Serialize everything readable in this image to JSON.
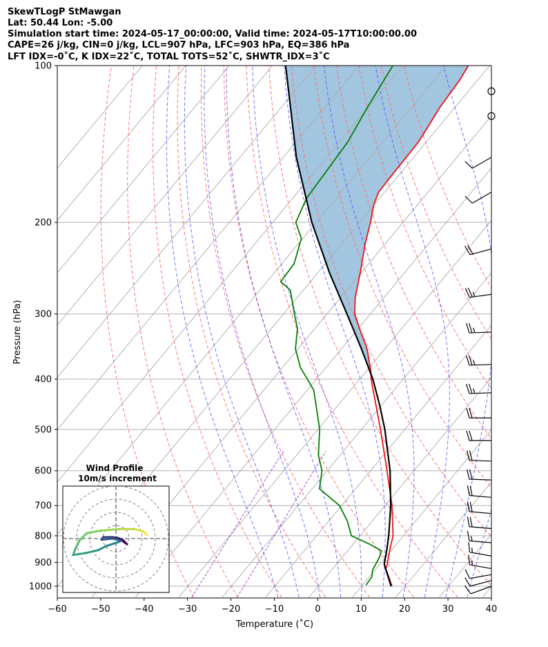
{
  "title": {
    "line1": "SkewTLogP StMawgan",
    "line2": "Lat: 50.44   Lon: -5.00",
    "line3": "Simulation start time: 2024-05-17_00:00:00, Valid time: 2024-05-17T10:00:00.00",
    "line4": "CAPE=26 j/kg, CIN=0 j/kg, LCL=907 hPa, LFC=903 hPa, EQ=386 hPa",
    "line5": "LFT IDX=-0˚C, K IDX=22˚C, TOTAL TOTS=52˚C, SHWTR_IDX=3˚C"
  },
  "colors": {
    "temperature": "#ee1111",
    "dewpoint": "#008000",
    "parcel": "#000000",
    "cape_fill": "#a3c6e0",
    "isotherm": "#aaaaaa",
    "dry_adiabat": "#ff6666",
    "moist_adiabat": "#4444ff",
    "mixing_ratio": "#9933cc"
  },
  "chart_data": {
    "type": "skewt",
    "xlabel": "Temperature (˚C)",
    "ylabel": "Pressure (hPa)",
    "xlim": [
      -60,
      40
    ],
    "ylim": [
      1050,
      100
    ],
    "xticks": [
      -60,
      -50,
      -40,
      -30,
      -20,
      -10,
      0,
      10,
      20,
      30,
      40
    ],
    "xtick_labels": [
      "−60",
      "−50",
      "−40",
      "−30",
      "−20",
      "−10",
      "0",
      "10",
      "20",
      "30",
      "40"
    ],
    "yticks": [
      1000,
      900,
      800,
      700,
      600,
      500,
      400,
      300,
      200,
      100
    ],
    "ytick_labels": [
      "1000",
      "900",
      "800",
      "700",
      "600",
      "500",
      "400",
      "300",
      "200",
      "100"
    ],
    "grid": true,
    "temperature_profile": [
      {
        "p": 1000,
        "t": 17.0
      },
      {
        "p": 960,
        "t": 14.5
      },
      {
        "p": 925,
        "t": 12.2
      },
      {
        "p": 907,
        "t": 11.7
      },
      {
        "p": 850,
        "t": 9.5
      },
      {
        "p": 800,
        "t": 7.6
      },
      {
        "p": 700,
        "t": 1.6
      },
      {
        "p": 600,
        "t": -6.2
      },
      {
        "p": 500,
        "t": -15.6
      },
      {
        "p": 400,
        "t": -27.4
      },
      {
        "p": 386,
        "t": -29.0
      },
      {
        "p": 350,
        "t": -34.1
      },
      {
        "p": 320,
        "t": -39.7
      },
      {
        "p": 300,
        "t": -43.6
      },
      {
        "p": 280,
        "t": -46.5
      },
      {
        "p": 250,
        "t": -50.2
      },
      {
        "p": 220,
        "t": -54.6
      },
      {
        "p": 200,
        "t": -57.5
      },
      {
        "p": 185,
        "t": -60.1
      },
      {
        "p": 175,
        "t": -61.4
      },
      {
        "p": 160,
        "t": -61.6
      },
      {
        "p": 140,
        "t": -61.8
      },
      {
        "p": 120,
        "t": -63.5
      },
      {
        "p": 107,
        "t": -64.1
      },
      {
        "p": 100,
        "t": -64.9
      }
    ],
    "dewpoint_profile": [
      {
        "p": 995,
        "t": 10.8
      },
      {
        "p": 960,
        "t": 10.6
      },
      {
        "p": 930,
        "t": 9.4
      },
      {
        "p": 910,
        "t": 9.1
      },
      {
        "p": 880,
        "t": 8.6
      },
      {
        "p": 855,
        "t": 7.8
      },
      {
        "p": 830,
        "t": 3.8
      },
      {
        "p": 800,
        "t": -2.0
      },
      {
        "p": 750,
        "t": -5.7
      },
      {
        "p": 700,
        "t": -10.5
      },
      {
        "p": 650,
        "t": -18.3
      },
      {
        "p": 600,
        "t": -21.2
      },
      {
        "p": 560,
        "t": -25.0
      },
      {
        "p": 500,
        "t": -29.6
      },
      {
        "p": 420,
        "t": -38.5
      },
      {
        "p": 380,
        "t": -45.9
      },
      {
        "p": 350,
        "t": -50.6
      },
      {
        "p": 320,
        "t": -54.0
      },
      {
        "p": 300,
        "t": -57.5
      },
      {
        "p": 270,
        "t": -63.0
      },
      {
        "p": 260,
        "t": -66.8
      },
      {
        "p": 240,
        "t": -67.2
      },
      {
        "p": 215,
        "t": -70.3
      },
      {
        "p": 200,
        "t": -74.7
      },
      {
        "p": 180,
        "t": -76.8
      },
      {
        "p": 160,
        "t": -77.4
      },
      {
        "p": 140,
        "t": -78.1
      },
      {
        "p": 120,
        "t": -80.2
      },
      {
        "p": 100,
        "t": -82.3
      }
    ],
    "parcel_profile": [
      {
        "p": 1000,
        "t": 16.8
      },
      {
        "p": 907,
        "t": 11.0
      },
      {
        "p": 850,
        "t": 8.8
      },
      {
        "p": 800,
        "t": 6.6
      },
      {
        "p": 700,
        "t": 1.3
      },
      {
        "p": 600,
        "t": -5.5
      },
      {
        "p": 500,
        "t": -14.6
      },
      {
        "p": 450,
        "t": -20.3
      },
      {
        "p": 400,
        "t": -27.0
      },
      {
        "p": 350,
        "t": -35.4
      },
      {
        "p": 300,
        "t": -45.4
      },
      {
        "p": 250,
        "t": -57.3
      },
      {
        "p": 200,
        "t": -71.0
      },
      {
        "p": 150,
        "t": -87.0
      },
      {
        "p": 100,
        "t": -107.0
      }
    ],
    "cape_region": {
      "from_p": 100,
      "to_p": 386
    },
    "isotherms": [
      -140,
      -130,
      -120,
      -110,
      -100,
      -90,
      -80,
      -70,
      -60,
      -50,
      -40,
      -30,
      -20,
      -10,
      0,
      10,
      20,
      30,
      40
    ],
    "dry_adiabats": [
      -30,
      -20,
      -10,
      0,
      10,
      20,
      30,
      40,
      50,
      60,
      70,
      80,
      90,
      100
    ],
    "moist_adiabats": [
      -10,
      -5,
      0,
      5,
      10,
      15,
      20,
      25,
      30,
      35
    ],
    "mixing_ratio_lines": [
      0.4,
      1.0
    ],
    "wind_barbs": [
      {
        "p": 1000,
        "speed_kt": 10,
        "dir_deg": 250
      },
      {
        "p": 975,
        "speed_kt": 10,
        "dir_deg": 255
      },
      {
        "p": 950,
        "speed_kt": 10,
        "dir_deg": 260
      },
      {
        "p": 925,
        "speed_kt": 15,
        "dir_deg": 280
      },
      {
        "p": 875,
        "speed_kt": 15,
        "dir_deg": 280
      },
      {
        "p": 825,
        "speed_kt": 15,
        "dir_deg": 275
      },
      {
        "p": 775,
        "speed_kt": 20,
        "dir_deg": 275
      },
      {
        "p": 725,
        "speed_kt": 20,
        "dir_deg": 275
      },
      {
        "p": 675,
        "speed_kt": 20,
        "dir_deg": 275
      },
      {
        "p": 625,
        "speed_kt": 20,
        "dir_deg": 272
      },
      {
        "p": 575,
        "speed_kt": 20,
        "dir_deg": 272
      },
      {
        "p": 525,
        "speed_kt": 20,
        "dir_deg": 270
      },
      {
        "p": 475,
        "speed_kt": 20,
        "dir_deg": 270
      },
      {
        "p": 425,
        "speed_kt": 25,
        "dir_deg": 268
      },
      {
        "p": 375,
        "speed_kt": 25,
        "dir_deg": 268
      },
      {
        "p": 325,
        "speed_kt": 25,
        "dir_deg": 268
      },
      {
        "p": 275,
        "speed_kt": 25,
        "dir_deg": 262
      },
      {
        "p": 225,
        "speed_kt": 20,
        "dir_deg": 255
      },
      {
        "p": 175,
        "speed_kt": 10,
        "dir_deg": 240
      },
      {
        "p": 150,
        "speed_kt": 10,
        "dir_deg": 240
      },
      {
        "p": 125,
        "speed_kt": 0,
        "dir_deg": 0
      },
      {
        "p": 112,
        "speed_kt": 0,
        "dir_deg": 0
      }
    ],
    "hodograph": {
      "title": "Wind Profile",
      "subtitle": "10m/s increment",
      "ring_increment_ms": 10,
      "rings": 4,
      "points": [
        {
          "u": 8.5,
          "v": -1.0
        },
        {
          "u": 7.5,
          "v": -2.0
        },
        {
          "u": 5.0,
          "v": -2.6
        },
        {
          "u": 1.0,
          "v": -2.6
        },
        {
          "u": -4.0,
          "v": -2.2
        },
        {
          "u": -8.0,
          "v": -1.5
        },
        {
          "u": -10.0,
          "v": 0.5
        },
        {
          "u": -11.0,
          "v": 2.5
        },
        {
          "u": -11.8,
          "v": 4.5
        },
        {
          "u": -8.5,
          "v": 4.0
        },
        {
          "u": -5.0,
          "v": 3.2
        },
        {
          "u": -2.5,
          "v": 2.0
        },
        {
          "u": 0.5,
          "v": 1.0
        },
        {
          "u": 1.5,
          "v": 0.6
        },
        {
          "u": -1.0,
          "v": 0.0
        },
        {
          "u": -4.0,
          "v": 0.3
        },
        {
          "u": -3.5,
          "v": -0.4
        },
        {
          "u": -1.0,
          "v": -0.4
        },
        {
          "u": 0.5,
          "v": -0.2
        },
        {
          "u": 1.8,
          "v": 0.3
        },
        {
          "u": 3.0,
          "v": 1.5
        },
        {
          "u": 2.0,
          "v": 0.8
        }
      ]
    }
  }
}
